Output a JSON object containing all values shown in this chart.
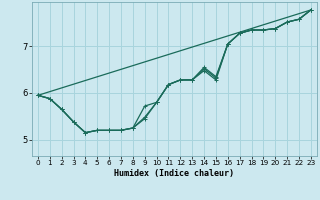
{
  "xlabel": "Humidex (Indice chaleur)",
  "bg_color": "#cce8ef",
  "grid_color": "#a8d4dd",
  "line_color": "#1a6b5a",
  "xlim": [
    -0.5,
    23.5
  ],
  "ylim": [
    4.65,
    7.95
  ],
  "xticks": [
    0,
    1,
    2,
    3,
    4,
    5,
    6,
    7,
    8,
    9,
    10,
    11,
    12,
    13,
    14,
    15,
    16,
    17,
    18,
    19,
    20,
    21,
    22,
    23
  ],
  "yticks": [
    5,
    6,
    7
  ],
  "series": [
    {
      "x": [
        0,
        1,
        2,
        3,
        4,
        5,
        6,
        7,
        8,
        9,
        10,
        11,
        12,
        13,
        14,
        15,
        16,
        17,
        18,
        19,
        20,
        21,
        22,
        23
      ],
      "y": [
        5.95,
        5.88,
        5.65,
        5.38,
        5.15,
        5.2,
        5.2,
        5.2,
        5.25,
        5.72,
        5.8,
        6.18,
        6.28,
        6.28,
        6.48,
        6.28,
        7.05,
        7.28,
        7.35,
        7.35,
        7.38,
        7.52,
        7.58,
        7.78
      ],
      "has_markers": true
    },
    {
      "x": [
        0,
        1,
        2,
        3,
        4,
        5,
        6,
        7,
        8,
        9,
        10,
        11,
        12,
        13,
        14,
        15,
        16,
        17,
        18,
        19,
        20,
        21,
        22,
        23
      ],
      "y": [
        5.95,
        5.88,
        5.65,
        5.38,
        5.15,
        5.2,
        5.2,
        5.2,
        5.25,
        5.48,
        5.8,
        6.18,
        6.28,
        6.28,
        6.52,
        6.32,
        7.05,
        7.28,
        7.35,
        7.35,
        7.38,
        7.52,
        7.58,
        7.78
      ],
      "has_markers": true
    },
    {
      "x": [
        0,
        1,
        2,
        3,
        4,
        5,
        6,
        7,
        8,
        9,
        10,
        11,
        12,
        13,
        14,
        15,
        16,
        17,
        18,
        19,
        20,
        21,
        22,
        23
      ],
      "y": [
        5.95,
        5.88,
        5.65,
        5.38,
        5.15,
        5.2,
        5.2,
        5.2,
        5.25,
        5.45,
        5.8,
        6.18,
        6.28,
        6.28,
        6.55,
        6.35,
        7.05,
        7.28,
        7.35,
        7.35,
        7.38,
        7.52,
        7.58,
        7.78
      ],
      "has_markers": true
    },
    {
      "x": [
        0,
        23
      ],
      "y": [
        5.95,
        7.78
      ],
      "has_markers": false
    }
  ],
  "marker": "+",
  "markersize": 3.5,
  "linewidth": 0.9,
  "xlabel_fontsize": 6.0,
  "tick_fontsize_x": 5.2,
  "tick_fontsize_y": 6.0
}
